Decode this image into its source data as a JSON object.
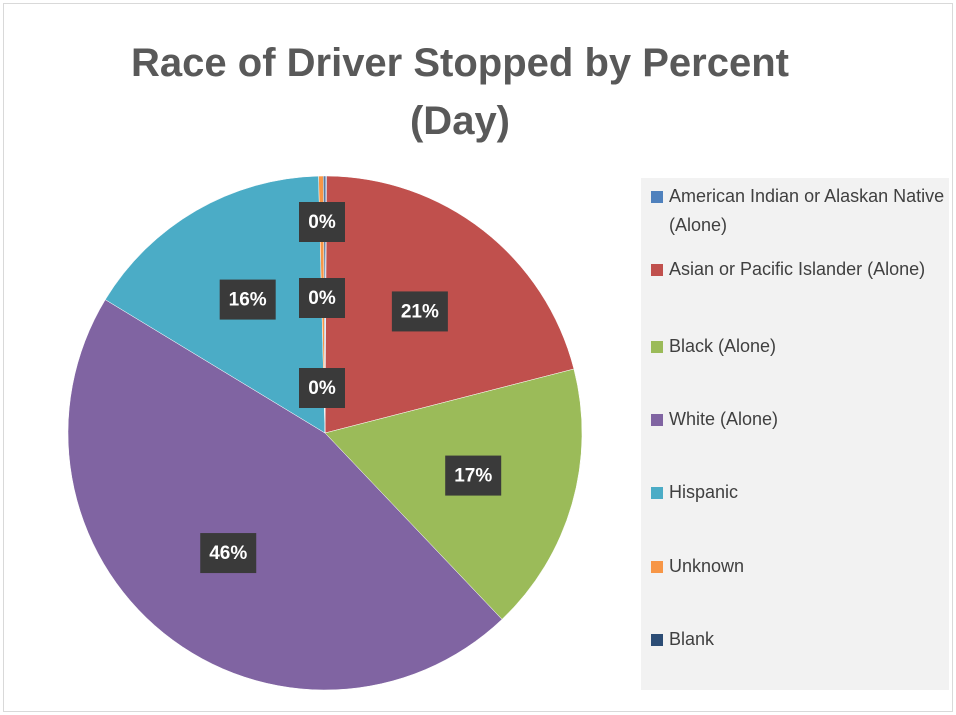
{
  "chart_data": {
    "type": "pie",
    "title": "Race of Driver Stopped by Percent (Day)",
    "categories": [
      "American Indian or Alaskan Native (Alone)",
      "Asian or Pacific Islander (Alone)",
      "Black (Alone)",
      "White (Alone)",
      "Hispanic",
      "Unknown",
      "Blank"
    ],
    "values": [
      0.1,
      21,
      17,
      46,
      16,
      0.3,
      0.1
    ],
    "value_labels": [
      "0%",
      "21%",
      "17%",
      "46%",
      "16%",
      "0%",
      "0%"
    ],
    "colors": [
      "#4f81bd",
      "#c0504d",
      "#9bbb59",
      "#8064a2",
      "#4bacc6",
      "#f79646",
      "#2c4d75"
    ],
    "legend": "right"
  }
}
